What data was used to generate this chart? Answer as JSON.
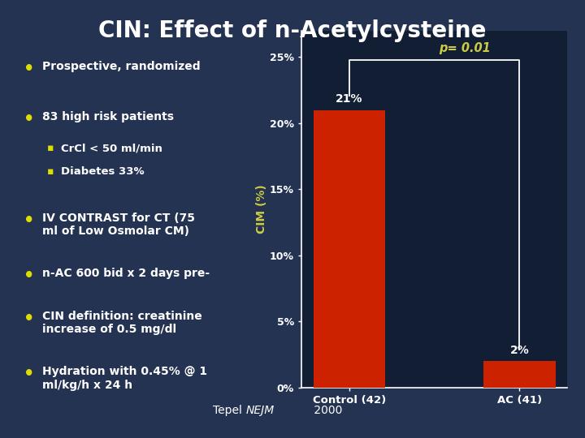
{
  "title": "CIN: Effect of n-Acetylcysteine",
  "title_color": "#FFFFFF",
  "title_fontsize": 20,
  "background_color": "#243352",
  "left_panel_bg": "#111E33",
  "chart_bg": "#111E33",
  "bar_categories": [
    "Control (42)",
    "AC (41)"
  ],
  "bar_values": [
    21,
    2
  ],
  "bar_labels": [
    "21%",
    "2%"
  ],
  "bar_color": "#CC2200",
  "ylabel": "CIM (%)",
  "ylabel_color": "#CCCC44",
  "yticks": [
    0,
    5,
    10,
    15,
    20,
    25
  ],
  "ytick_labels": [
    "0%",
    "5%",
    "10%",
    "15%",
    "20%",
    "25%"
  ],
  "ylim": [
    0,
    27
  ],
  "tick_color": "#FFFFFF",
  "pvalue_text": "p= 0.01",
  "pvalue_color": "#CCCC44",
  "bullet_color": "#FFFFFF",
  "bullet_dot_color": "#DDDD00",
  "sub_bullet_color": "#DDDD00",
  "axis_color": "#FFFFFF",
  "footnote_color": "#FFFFFF",
  "bottom_bg": "#2A3F60"
}
